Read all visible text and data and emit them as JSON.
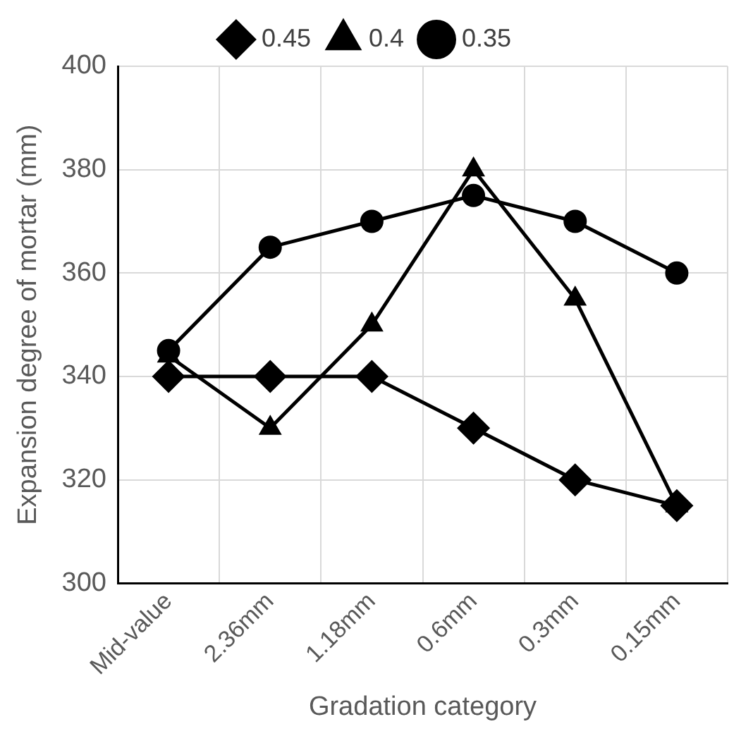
{
  "chart_data": {
    "type": "line",
    "xlabel": "Gradation category",
    "ylabel": "Expansion degree of mortar (mm)",
    "categories": [
      "Mid-value",
      "2.36mm",
      "1.18mm",
      "0.6mm",
      "0.3mm",
      "0.15mm"
    ],
    "series": [
      {
        "name": "0.45",
        "color": "#000000",
        "marker": "diamond",
        "values": [
          340,
          340,
          340,
          330,
          320,
          315
        ]
      },
      {
        "name": "0.4",
        "color": "#000000",
        "marker": "triangle",
        "values": [
          344,
          330,
          350,
          380,
          355,
          315
        ]
      },
      {
        "name": "0.35",
        "color": "#000000",
        "marker": "circle",
        "values": [
          345,
          365,
          370,
          375,
          370,
          360
        ]
      }
    ],
    "ylim": [
      300,
      400
    ],
    "yticks": [
      300,
      320,
      340,
      360,
      380,
      400
    ],
    "grid": true,
    "legend": "top",
    "line_style": "solid"
  }
}
